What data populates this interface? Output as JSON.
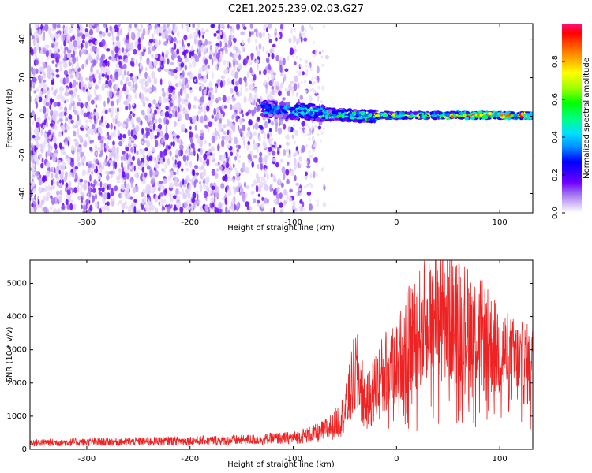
{
  "title": "C2E1.2025.239.02.03.G27",
  "chart_data": [
    {
      "type": "heatmap",
      "xlabel": "Height of straight line (km)",
      "ylabel": "Frequency (Hz)",
      "xlim": [
        -355,
        132
      ],
      "ylim": [
        -50,
        48
      ],
      "xticks": [
        -300,
        -200,
        -100,
        0,
        100
      ],
      "yticks": [
        -40,
        -20,
        0,
        20,
        40
      ],
      "colorbar": {
        "label": "Normalized spectral amplitude",
        "range": [
          0.0,
          1.0
        ],
        "ticks": [
          0.0,
          0.2,
          0.4,
          0.6,
          0.8
        ],
        "tick_labels": [
          "0.0",
          "0.2",
          "0.4",
          "0.6",
          "0.8"
        ],
        "colormap": [
          "#ffffff",
          "#dcc8f8",
          "#a070f0",
          "#7000ff",
          "#3000ff",
          "#0000ff",
          "#0090ff",
          "#00e0ff",
          "#00ff80",
          "#00ff00",
          "#a0ff00",
          "#ffff00",
          "#ffa000",
          "#ff4000",
          "#ff0000",
          "#ff1080"
        ]
      },
      "description": "Broadband noise over full frequency range below about -80 km; signal converges to a narrow band near 0 Hz above about -120 km, strongest (red) between 50 and 130 km."
    },
    {
      "type": "line",
      "xlabel": "Height of straight line (km)",
      "ylabel": "SNR (10 * v/v)",
      "xlim": [
        -355,
        132
      ],
      "ylim": [
        0,
        5700
      ],
      "xticks": [
        -300,
        -200,
        -100,
        0,
        100
      ],
      "yticks": [
        0,
        1000,
        2000,
        3000,
        4000,
        5000
      ],
      "color": "#ee2222",
      "series": [
        {
          "name": "SNR",
          "x": [
            -355,
            -300,
            -250,
            -200,
            -150,
            -100,
            -75,
            -60,
            -50,
            -45,
            -40,
            -35,
            -30,
            -25,
            -20,
            -10,
            0,
            10,
            20,
            30,
            40,
            50,
            60,
            70,
            80,
            90,
            100,
            110,
            120,
            132
          ],
          "y": [
            200,
            220,
            240,
            260,
            280,
            350,
            500,
            750,
            1100,
            1700,
            2300,
            2000,
            1300,
            1600,
            1900,
            2300,
            2600,
            3200,
            3600,
            3900,
            4200,
            4000,
            3900,
            3700,
            3500,
            3200,
            3000,
            2700,
            2600,
            2500
          ]
        }
      ]
    }
  ]
}
